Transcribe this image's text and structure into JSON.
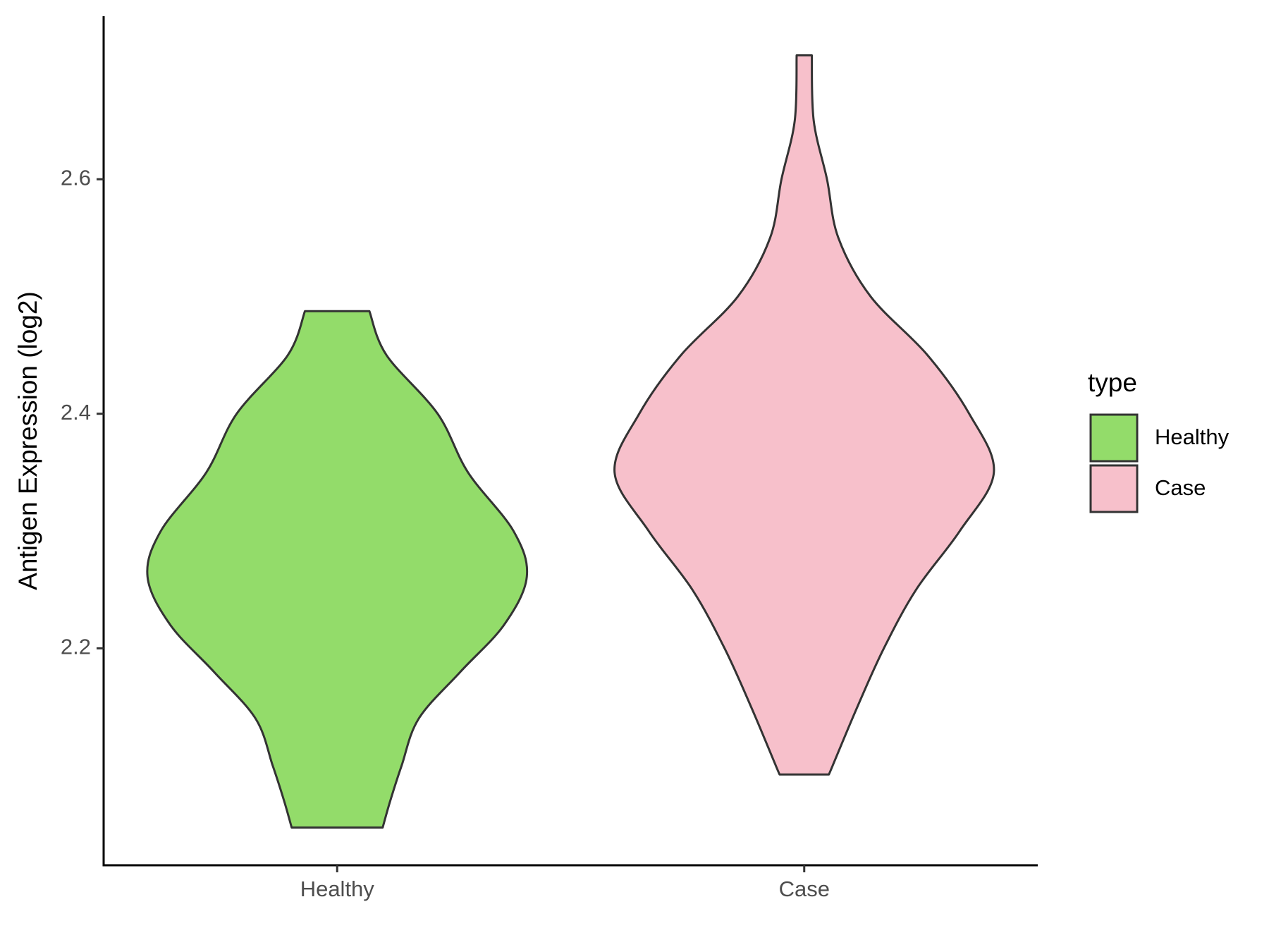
{
  "chart_data": {
    "type": "violin",
    "y_label": "Antigen Expression (log2)",
    "categories": [
      "Healthy",
      "Case"
    ],
    "ylim": [
      2.015,
      2.739
    ],
    "yticks": [
      2.2,
      2.4,
      2.6
    ],
    "legend_title": "type",
    "legend_position": "right",
    "series": [
      {
        "name": "Healthy",
        "color": "#93dc6a",
        "y": [
          2.4875,
          2.45,
          2.4,
          2.35,
          2.3,
          2.261,
          2.22,
          2.18,
          2.14,
          2.1,
          2.07,
          2.0472
        ],
        "density": [
          0.17,
          0.26,
          0.53,
          0.69,
          0.93,
          1.0,
          0.88,
          0.65,
          0.43,
          0.34,
          0.28,
          0.24
        ]
      },
      {
        "name": "Case",
        "color": "#f7c0cb",
        "y": [
          2.7056,
          2.65,
          2.6,
          2.55,
          2.5,
          2.45,
          2.4,
          2.35,
          2.3,
          2.25,
          2.2,
          2.15,
          2.1,
          2.0924
        ],
        "density": [
          0.04,
          0.05,
          0.12,
          0.18,
          0.35,
          0.65,
          0.87,
          1.0,
          0.82,
          0.59,
          0.42,
          0.28,
          0.15,
          0.13
        ]
      }
    ]
  }
}
